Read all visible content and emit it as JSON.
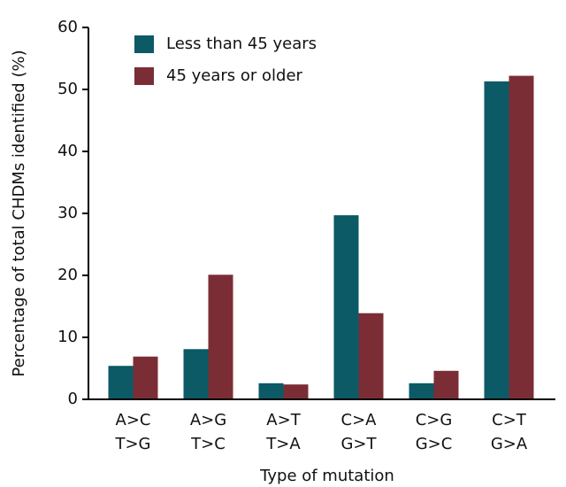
{
  "chart_data": {
    "type": "bar",
    "x_label": "Type of mutation",
    "y_label": "Percentage of total CHDMs identified (%)",
    "categories": [
      [
        "A>C",
        "T>G"
      ],
      [
        "A>G",
        "T>C"
      ],
      [
        "A>T",
        "T>A"
      ],
      [
        "C>A",
        "G>T"
      ],
      [
        "C>G",
        "G>C"
      ],
      [
        "C>T",
        "G>A"
      ]
    ],
    "series": [
      {
        "name": "Less than 45 years",
        "color": "#0b5a66",
        "values": [
          5.4,
          8.1,
          2.6,
          29.7,
          2.6,
          51.3
        ]
      },
      {
        "name": "45 years or older",
        "color": "#7b2d35",
        "values": [
          6.9,
          20.1,
          2.4,
          13.9,
          4.6,
          52.2
        ]
      }
    ],
    "ylim": [
      0,
      60
    ],
    "yticks": [
      0,
      10,
      20,
      30,
      40,
      50,
      60
    ],
    "grid": false,
    "legend": "upper-left"
  }
}
